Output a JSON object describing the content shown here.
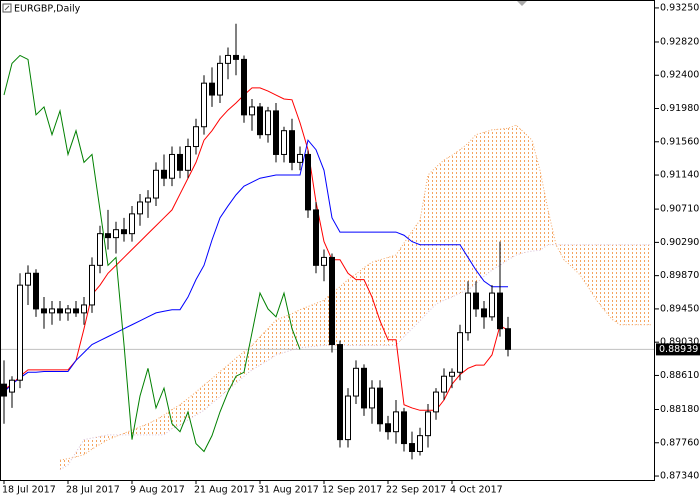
{
  "chart_data": {
    "type": "candlestick",
    "title": "EURGBP,Daily",
    "categories": [
      "18 Jul 2017",
      null,
      null,
      null,
      null,
      null,
      null,
      null,
      "28 Jul 2017",
      null,
      null,
      null,
      null,
      null,
      null,
      null,
      "9 Aug 2017",
      null,
      null,
      null,
      null,
      null,
      null,
      null,
      "21 Aug 2017",
      null,
      null,
      null,
      null,
      null,
      null,
      null,
      "31 Aug 2017",
      null,
      null,
      null,
      null,
      null,
      null,
      null,
      "12 Sep 2017",
      null,
      null,
      null,
      null,
      null,
      null,
      null,
      "22 Sep 2017",
      null,
      null,
      null,
      null,
      null,
      null,
      null,
      "4 Oct 2017",
      null,
      null,
      null,
      null,
      null,
      null,
      null,
      null,
      null,
      null,
      null,
      null,
      null,
      null,
      null,
      null,
      null,
      null,
      null,
      null,
      null,
      null,
      null,
      null,
      null
    ],
    "open": [
      0.885,
      0.884,
      0.8855,
      0.8975,
      0.899,
      0.8945,
      0.894,
      0.8945,
      0.894,
      0.8945,
      0.894,
      0.895,
      0.9,
      0.904,
      0.9035,
      0.9045,
      0.904,
      0.9065,
      0.908,
      0.9085,
      0.912,
      0.911,
      0.914,
      0.912,
      0.915,
      0.9175,
      0.923,
      0.9215,
      0.9255,
      0.9265,
      0.926,
      0.919,
      0.92,
      0.9165,
      0.9195,
      0.914,
      0.917,
      0.913,
      0.914,
      0.907,
      0.9,
      0.901,
      0.89,
      0.878,
      0.8835,
      0.887,
      0.882,
      0.8845,
      0.88,
      0.879,
      0.8815,
      0.8775,
      0.8765,
      0.8785,
      0.8815,
      0.884,
      0.886,
      0.8865,
      0.8915,
      0.8965,
      0.8945,
      0.8935,
      0.8965,
      0.892,
      null,
      null,
      null,
      null,
      null,
      null,
      null,
      null,
      null,
      null,
      null,
      null,
      null,
      null,
      null,
      null,
      null,
      null
    ],
    "high": [
      0.888,
      0.886,
      0.899,
      0.9,
      0.8995,
      0.896,
      0.8955,
      0.8955,
      0.895,
      0.8955,
      0.896,
      0.901,
      0.905,
      0.907,
      0.9055,
      0.906,
      0.9075,
      0.909,
      0.9095,
      0.913,
      0.914,
      0.915,
      0.915,
      0.916,
      0.9185,
      0.924,
      0.925,
      0.9265,
      0.9275,
      0.9305,
      0.9265,
      0.921,
      0.9205,
      0.92,
      0.9205,
      0.9175,
      0.9185,
      0.915,
      0.9145,
      0.908,
      0.902,
      0.9015,
      0.8905,
      0.8845,
      0.888,
      0.8875,
      0.8855,
      0.8855,
      0.881,
      0.883,
      0.882,
      0.879,
      0.8795,
      0.8825,
      0.8845,
      0.887,
      0.887,
      0.8925,
      0.898,
      0.898,
      0.8955,
      0.8975,
      0.903,
      0.8935,
      null,
      null,
      null,
      null,
      null,
      null,
      null,
      null,
      null,
      null,
      null,
      null,
      null,
      null,
      null,
      null,
      null,
      null
    ],
    "low": [
      0.88,
      0.882,
      0.8845,
      0.895,
      0.8935,
      0.892,
      0.8925,
      0.893,
      0.893,
      0.8935,
      0.8925,
      0.894,
      0.899,
      0.902,
      0.9015,
      0.903,
      0.903,
      0.905,
      0.906,
      0.9075,
      0.91,
      0.91,
      0.911,
      0.911,
      0.914,
      0.9165,
      0.92,
      0.9205,
      0.9235,
      0.924,
      0.918,
      0.917,
      0.916,
      0.9155,
      0.913,
      0.913,
      0.912,
      0.912,
      0.906,
      0.899,
      0.898,
      0.889,
      0.877,
      0.877,
      0.8825,
      0.881,
      0.88,
      0.879,
      0.878,
      0.8775,
      0.8765,
      0.8755,
      0.876,
      0.877,
      0.8805,
      0.883,
      0.8845,
      0.8855,
      0.8905,
      0.8935,
      0.892,
      0.893,
      0.891,
      0.8885,
      null,
      null,
      null,
      null,
      null,
      null,
      null,
      null,
      null,
      null,
      null,
      null,
      null,
      null,
      null,
      null,
      null,
      null
    ],
    "close": [
      0.8835,
      0.8855,
      0.8975,
      0.899,
      0.8945,
      0.894,
      0.8945,
      0.894,
      0.8945,
      0.894,
      0.895,
      0.9,
      0.904,
      0.9035,
      0.9045,
      0.904,
      0.9065,
      0.908,
      0.9085,
      0.912,
      0.911,
      0.914,
      0.912,
      0.915,
      0.9175,
      0.923,
      0.9215,
      0.9255,
      0.9265,
      0.926,
      0.919,
      0.92,
      0.9165,
      0.9195,
      0.914,
      0.917,
      0.913,
      0.914,
      0.907,
      0.9,
      0.901,
      0.89,
      0.878,
      0.8835,
      0.887,
      0.882,
      0.8845,
      0.88,
      0.879,
      0.8815,
      0.8775,
      0.8765,
      0.8785,
      0.8815,
      0.884,
      0.886,
      0.8865,
      0.8915,
      0.8965,
      0.8945,
      0.8935,
      0.8965,
      0.892,
      0.88939,
      null,
      null,
      null,
      null,
      null,
      null,
      null,
      null,
      null,
      null,
      null,
      null,
      null,
      null,
      null,
      null,
      null,
      null
    ],
    "lines": [
      {
        "color": "#ff0000",
        "values": [
          0.8843,
          0.885,
          0.886,
          0.8868,
          0.8868,
          0.8868,
          0.8868,
          0.8868,
          0.8868,
          0.888,
          0.892,
          0.8963,
          0.8975,
          0.899,
          0.9,
          0.901,
          0.902,
          0.903,
          0.904,
          0.905,
          0.906,
          0.907,
          0.909,
          0.911,
          0.913,
          0.9158,
          0.917,
          0.9185,
          0.9196,
          0.9205,
          0.9215,
          0.9224,
          0.9224,
          0.922,
          0.9215,
          0.921,
          0.9209,
          0.918,
          0.9146,
          0.908,
          0.903,
          0.9007,
          0.9007,
          0.899,
          0.8982,
          0.8982,
          0.896,
          0.893,
          0.8906,
          0.8906,
          0.8824,
          0.882,
          0.8817,
          0.8817,
          0.8817,
          0.883,
          0.885,
          0.8862,
          0.887,
          0.8874,
          0.8874,
          0.8887,
          0.8924,
          0.8918,
          null,
          null,
          null,
          null,
          null,
          null,
          null,
          null,
          null,
          null,
          null,
          null,
          null,
          null,
          null,
          null,
          null,
          null
        ]
      },
      {
        "color": "#0000ff",
        "values": [
          0.884,
          0.885,
          0.8858,
          0.8865,
          0.8865,
          0.8866,
          0.8866,
          0.8866,
          0.8866,
          0.888,
          0.889,
          0.89,
          0.8905,
          0.891,
          0.8915,
          0.892,
          0.8925,
          0.893,
          0.8935,
          0.894,
          0.8942,
          0.8944,
          0.8944,
          0.896,
          0.8982,
          0.9,
          0.9032,
          0.906,
          0.9075,
          0.9089,
          0.91,
          0.9105,
          0.911,
          0.9112,
          0.9114,
          0.9114,
          0.9114,
          0.9114,
          0.9158,
          0.9146,
          0.912,
          0.906,
          0.9042,
          0.9042,
          0.9042,
          0.9042,
          0.9042,
          0.9042,
          0.9042,
          0.9042,
          0.9038,
          0.903,
          0.9026,
          0.9026,
          0.9026,
          0.9026,
          0.9026,
          0.9026,
          0.901,
          0.8994,
          0.898,
          0.8973,
          0.8973,
          0.8973,
          null,
          null,
          null,
          null,
          null,
          null,
          null,
          null,
          null,
          null,
          null,
          null,
          null,
          null,
          null,
          null,
          null,
          null
        ]
      },
      {
        "color": "#008000",
        "values": [
          0.9215,
          0.9255,
          0.9265,
          0.926,
          0.919,
          0.92,
          0.9165,
          0.9195,
          0.914,
          0.917,
          0.913,
          0.914,
          0.907,
          0.9,
          0.901,
          0.89,
          0.878,
          0.8835,
          0.887,
          0.882,
          0.8845,
          0.88,
          0.879,
          0.8815,
          0.8775,
          0.8765,
          0.8785,
          0.8815,
          0.884,
          0.886,
          0.8865,
          0.8915,
          0.8965,
          0.8945,
          0.8935,
          0.8965,
          0.892,
          0.88939,
          null,
          null,
          null,
          null,
          null,
          null,
          null,
          null,
          null,
          null,
          null,
          null,
          null,
          null,
          null,
          null,
          null,
          null,
          null,
          null,
          null,
          null,
          null,
          null,
          null,
          null,
          null,
          null,
          null,
          null,
          null,
          null,
          null,
          null,
          null,
          null,
          null,
          null,
          null,
          null,
          null,
          null,
          null,
          null
        ]
      }
    ],
    "cloud": {
      "color": "#f4a460",
      "edge_color": "#d8bfd8",
      "span_a": [
        null,
        null,
        null,
        null,
        null,
        null,
        null,
        0.8754,
        0.8756,
        0.8758,
        0.8761,
        0.8768,
        0.8774,
        0.878,
        0.8784,
        0.8788,
        0.8792,
        0.8796,
        0.88,
        0.8805,
        0.8811,
        0.8818,
        0.8824,
        0.8832,
        0.884,
        0.8849,
        0.8857,
        0.8866,
        0.8874,
        0.8883,
        0.8891,
        0.8899,
        0.891,
        0.892,
        0.8931,
        0.8935,
        0.8939,
        0.8944,
        0.8948,
        0.8952,
        0.8956,
        0.8965,
        0.8973,
        0.8982,
        0.8989,
        0.8997,
        0.9004,
        0.9007,
        0.901,
        0.9013,
        0.9028,
        0.9043,
        0.9057,
        0.9114,
        0.9124,
        0.9133,
        0.9139,
        0.9146,
        0.9154,
        0.9165,
        0.9168,
        0.9171,
        0.9172,
        0.9173,
        0.9177,
        0.9168,
        0.9158,
        0.912,
        0.907,
        0.9026,
        0.9007,
        0.8998,
        0.8988,
        0.8973,
        0.8957,
        0.8944,
        0.8932,
        0.8925,
        0.8925,
        0.8925,
        0.8925,
        0.8925
      ],
      "span_b": [
        null,
        null,
        null,
        null,
        null,
        null,
        null,
        0.8742,
        0.8748,
        0.8764,
        0.878,
        0.8782,
        0.8784,
        0.8786,
        0.8786,
        0.8786,
        0.8786,
        0.8786,
        0.8786,
        0.8786,
        0.8786,
        0.8794,
        0.8798,
        0.8805,
        0.8811,
        0.8817,
        0.8826,
        0.8834,
        0.8843,
        0.8851,
        0.886,
        0.8868,
        0.8874,
        0.888,
        0.8887,
        0.889,
        0.8893,
        0.8896,
        0.8897,
        0.8898,
        0.8899,
        0.8899,
        0.8899,
        0.8899,
        0.8899,
        0.8899,
        0.8899,
        0.8899,
        0.8899,
        0.8899,
        0.891,
        0.892,
        0.893,
        0.8941,
        0.8951,
        0.8956,
        0.896,
        0.8965,
        0.8969,
        0.8977,
        0.8986,
        0.8994,
        0.9,
        0.9007,
        0.9013,
        0.9016,
        0.9018,
        0.9019,
        0.9026,
        0.9026,
        0.9026,
        0.9026,
        0.9026,
        0.9026,
        0.9026,
        0.9026,
        0.9026,
        0.9026,
        0.9026,
        0.9026,
        0.9026,
        0.9026
      ]
    },
    "last_price": 0.88939,
    "ylim": [
      0.8729,
      0.9335
    ],
    "yticks": [
      {
        "value": 0.9325,
        "label": "0.93250"
      },
      {
        "value": 0.9282,
        "label": "0.92820"
      },
      {
        "value": 0.924,
        "label": "0.92400"
      },
      {
        "value": 0.9198,
        "label": "0.91980"
      },
      {
        "value": 0.9156,
        "label": "0.91560"
      },
      {
        "value": 0.9114,
        "label": "0.91140"
      },
      {
        "value": 0.9071,
        "label": "0.90710"
      },
      {
        "value": 0.9029,
        "label": "0.90290"
      },
      {
        "value": 0.8987,
        "label": "0.89870"
      },
      {
        "value": 0.8945,
        "label": "0.89450"
      },
      {
        "value": 0.8903,
        "label": "0.89030"
      },
      {
        "value": 0.8861,
        "label": "0.88610"
      },
      {
        "value": 0.8818,
        "label": "0.88180"
      },
      {
        "value": 0.8776,
        "label": "0.87760"
      },
      {
        "value": 0.8734,
        "label": "0.87340"
      }
    ]
  }
}
